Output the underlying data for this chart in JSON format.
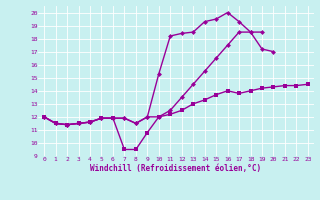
{
  "xlabel": "Windchill (Refroidissement éolien,°C)",
  "xlim": [
    -0.5,
    23.5
  ],
  "ylim": [
    9,
    20.5
  ],
  "xticks": [
    0,
    1,
    2,
    3,
    4,
    5,
    6,
    7,
    8,
    9,
    10,
    11,
    12,
    13,
    14,
    15,
    16,
    17,
    18,
    19,
    20,
    21,
    22,
    23
  ],
  "yticks": [
    9,
    10,
    11,
    12,
    13,
    14,
    15,
    16,
    17,
    18,
    19,
    20
  ],
  "bg_color": "#c8f0f0",
  "line_color": "#990099",
  "grid_color": "#aadddd",
  "line1_x": [
    0,
    1,
    2,
    3,
    4,
    5,
    6,
    7,
    8,
    9,
    10,
    11,
    12,
    13,
    14,
    15,
    16,
    17,
    18,
    19,
    20,
    21,
    22,
    23
  ],
  "line1_y": [
    12,
    11.5,
    11.4,
    11.5,
    11.6,
    11.9,
    11.9,
    9.5,
    9.5,
    10.8,
    12,
    12.2,
    12.5,
    13.0,
    13.3,
    13.7,
    14.0,
    13.8,
    14.0,
    14.2,
    14.3,
    14.4,
    14.4,
    14.5
  ],
  "line2_x": [
    0,
    1,
    2,
    3,
    4,
    5,
    6,
    7,
    8,
    9,
    10,
    11,
    12,
    13,
    14,
    15,
    16,
    17,
    18,
    19,
    20,
    21,
    22,
    23
  ],
  "line2_y": [
    12,
    11.5,
    11.4,
    11.5,
    11.6,
    11.9,
    11.9,
    11.9,
    11.5,
    12.0,
    15.3,
    18.2,
    18.4,
    18.5,
    19.3,
    19.5,
    20.0,
    19.3,
    18.5,
    17.2,
    17.0,
    null,
    null,
    null
  ],
  "line3_x": [
    0,
    1,
    2,
    3,
    4,
    5,
    6,
    7,
    8,
    9,
    10,
    11,
    12,
    13,
    14,
    15,
    16,
    17,
    18,
    19,
    20,
    21,
    22,
    23
  ],
  "line3_y": [
    12,
    11.5,
    11.4,
    11.5,
    11.6,
    11.9,
    11.9,
    11.9,
    11.5,
    12.0,
    12.0,
    12.5,
    13.5,
    14.5,
    15.5,
    16.5,
    17.5,
    18.5,
    18.5,
    18.5,
    null,
    null,
    null,
    null
  ]
}
